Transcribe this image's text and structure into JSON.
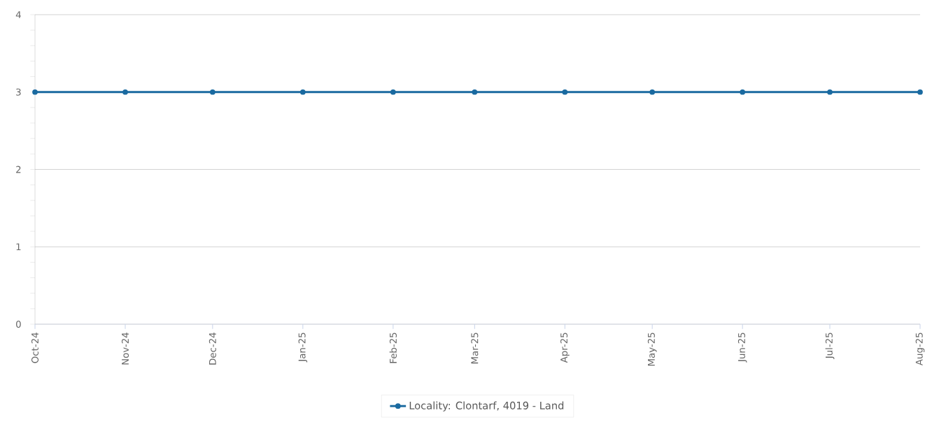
{
  "chart_data": {
    "type": "line",
    "x": [
      "2024-10-01",
      "2024-11-01",
      "2024-12-01",
      "2025-01-01",
      "2025-02-01",
      "2025-03-01",
      "2025-04-01",
      "2025-05-01",
      "2025-06-01",
      "2025-07-01",
      "2025-08-01"
    ],
    "series": [
      {
        "name": "Locality: Clontarf, 4019 - Land",
        "color": "#1a6aa0",
        "values": [
          3,
          3,
          3,
          3,
          3,
          3,
          3,
          3,
          3,
          3,
          3
        ]
      }
    ],
    "xlim": [
      "2024-10-01",
      "2025-08-01"
    ],
    "xticks": [
      {
        "value": "2024-10-01",
        "label": "Oct-24"
      },
      {
        "value": "2024-11-01",
        "label": "Nov-24"
      },
      {
        "value": "2024-12-01",
        "label": "Dec-24"
      },
      {
        "value": "2025-01-01",
        "label": "Jan-25"
      },
      {
        "value": "2025-02-01",
        "label": "Feb-25"
      },
      {
        "value": "2025-03-01",
        "label": "Mar-25"
      },
      {
        "value": "2025-04-01",
        "label": "Apr-25"
      },
      {
        "value": "2025-05-01",
        "label": "May-25"
      },
      {
        "value": "2025-06-01",
        "label": "Jun-25"
      },
      {
        "value": "2025-07-01",
        "label": "Jul-25"
      },
      {
        "value": "2025-08-01",
        "label": "Aug-25"
      }
    ],
    "ylim": [
      0,
      4
    ],
    "yticks": [
      0,
      1,
      2,
      3,
      4
    ],
    "grid": "y",
    "legend": "bottom",
    "marker": "circle",
    "line_style": "solid"
  }
}
